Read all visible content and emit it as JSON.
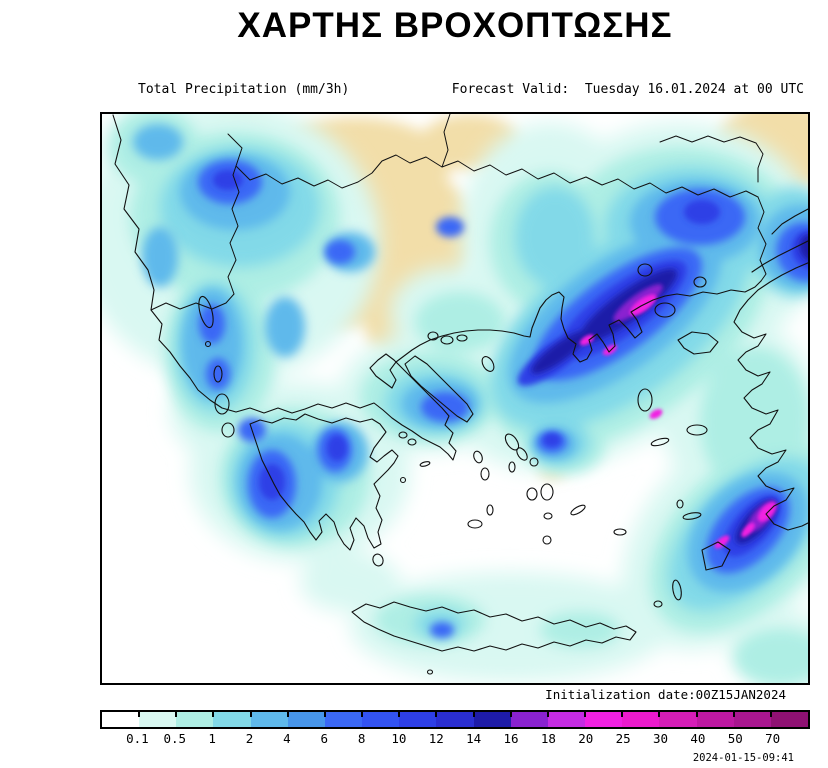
{
  "header": {
    "title": "ΧΑΡΤΗΣ ΒΡΟΧΟΠΤΩΣΗΣ",
    "variable_label": "Total Precipitation (mm/3h)",
    "forecast_valid": "Forecast Valid:  Tuesday 16.01.2024 at 00 UTC"
  },
  "map": {
    "init_label": "Initialization date:00Z15JAN2024",
    "timestamp": "2024-01-15-09:41"
  },
  "legend": {
    "values": [
      "0.1",
      "0.5",
      "1",
      "2",
      "4",
      "6",
      "8",
      "10",
      "12",
      "14",
      "16",
      "18",
      "20",
      "25",
      "30",
      "40",
      "50",
      "70"
    ],
    "colors": [
      "#FFFFFF",
      "#D9F8F2",
      "#AEEEE4",
      "#82D9E8",
      "#5FB9EB",
      "#4795EA",
      "#3B68F5",
      "#3353F2",
      "#2E3FE6",
      "#2A2ED1",
      "#1E1BA8",
      "#8A22D0",
      "#C52BE3",
      "#F120E2",
      "#EC1ACD",
      "#D51DB7",
      "#BE18A2",
      "#A91690",
      "#8F1173"
    ],
    "land_dry_color": "#F2DEA9",
    "sea_color": "#FFFFFF"
  }
}
